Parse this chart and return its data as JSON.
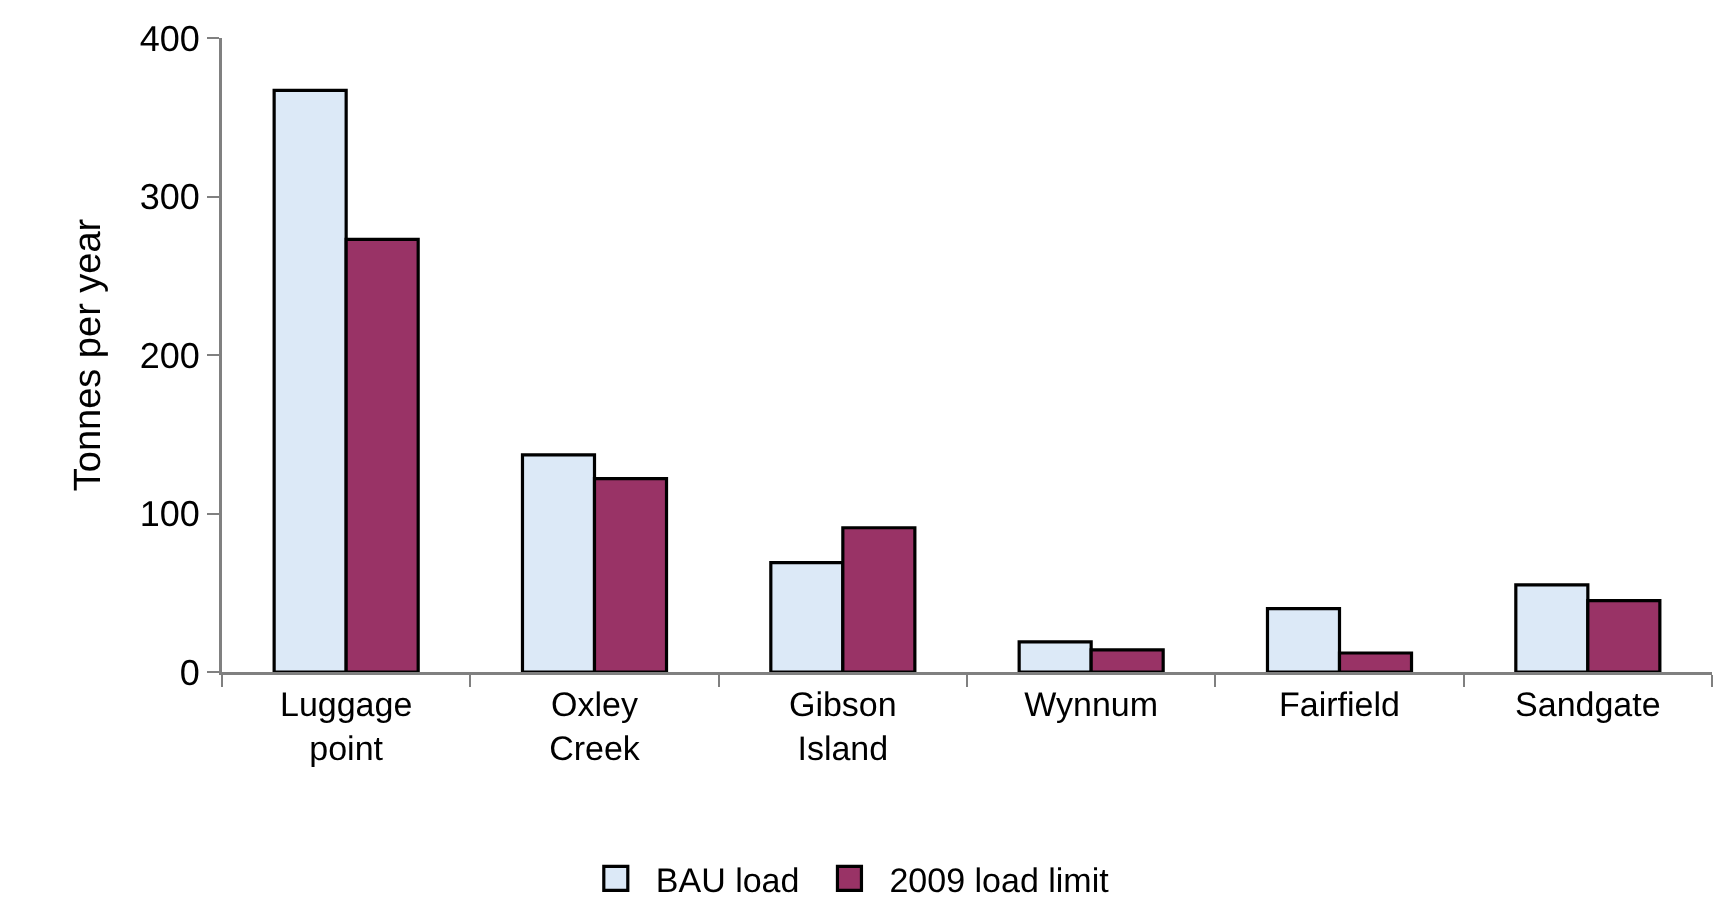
{
  "chart_data": {
    "type": "bar",
    "ylabel": "Tonnes per year",
    "categories": [
      "Luggage point",
      "Oxley Creek",
      "Gibson Island",
      "Wynnum",
      "Fairfield",
      "Sandgate"
    ],
    "series": [
      {
        "name": "BAU load",
        "color": "#dce9f7",
        "values": [
          367,
          137,
          69,
          19,
          40,
          55
        ]
      },
      {
        "name": "2009 load limit",
        "color": "#993366",
        "values": [
          273,
          122,
          91,
          14,
          12,
          45
        ]
      }
    ],
    "ylim": [
      0,
      400
    ],
    "yticks": [
      0,
      100,
      200,
      300,
      400
    ],
    "legend": "bottom"
  }
}
